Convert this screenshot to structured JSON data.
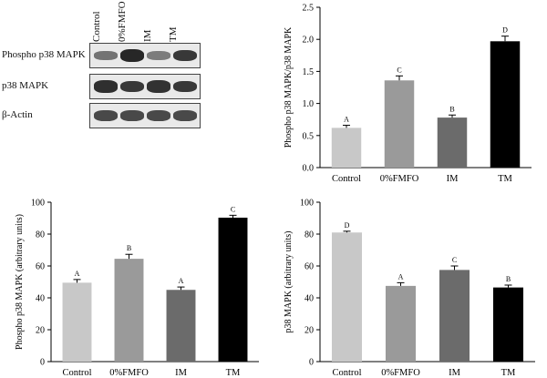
{
  "blot": {
    "lanes": [
      "Control",
      "0%FMFO",
      "IM",
      "TM"
    ],
    "rows": [
      {
        "label": "Phospho p38 MAPK",
        "intensity": [
          0.5,
          0.95,
          0.45,
          0.85
        ]
      },
      {
        "label": "p38 MAPK",
        "intensity": [
          0.9,
          0.85,
          0.88,
          0.85
        ]
      },
      {
        "label": "β-Actin",
        "intensity": [
          0.75,
          0.75,
          0.75,
          0.75
        ]
      }
    ]
  },
  "chart_data": [
    {
      "type": "bar",
      "categories": [
        "Control",
        "0%FMFO",
        "IM",
        "TM"
      ],
      "values": [
        0.62,
        1.36,
        0.78,
        1.97
      ],
      "errors": [
        0.04,
        0.07,
        0.04,
        0.08
      ],
      "letters": [
        "A",
        "C",
        "B",
        "D"
      ],
      "colors": [
        "#c8c8c8",
        "#9a9a9a",
        "#6b6b6b",
        "#000000"
      ],
      "ylabel": "Phospho p38 MAPK/p38 MAPK",
      "xlabel": "",
      "ylim": [
        0,
        2.5
      ],
      "yticks": [
        "0.0",
        "0.5",
        "1.0",
        "1.5",
        "2.0",
        "2.5"
      ]
    },
    {
      "type": "bar",
      "categories": [
        "Control",
        "0%FMFO",
        "IM",
        "TM"
      ],
      "values": [
        49.5,
        64.5,
        45.0,
        90.3
      ],
      "errors": [
        2.0,
        2.8,
        1.8,
        1.5
      ],
      "letters": [
        "A",
        "B",
        "A",
        "C"
      ],
      "colors": [
        "#c8c8c8",
        "#9a9a9a",
        "#6b6b6b",
        "#000000"
      ],
      "ylabel": "Phospho p38 MAPK (arbitrary units)",
      "xlabel": "",
      "ylim": [
        0,
        100
      ],
      "yticks": [
        "0",
        "20",
        "40",
        "60",
        "80",
        "100"
      ]
    },
    {
      "type": "bar",
      "categories": [
        "Control",
        "0%FMFO",
        "IM",
        "TM"
      ],
      "values": [
        81.0,
        47.5,
        57.5,
        46.5
      ],
      "errors": [
        0.8,
        2.0,
        2.5,
        1.5
      ],
      "letters": [
        "D",
        "A",
        "C",
        "B"
      ],
      "colors": [
        "#c8c8c8",
        "#9a9a9a",
        "#6b6b6b",
        "#000000"
      ],
      "ylabel": "p38 MAPK (arbitrary units)",
      "xlabel": "",
      "ylim": [
        0,
        100
      ],
      "yticks": [
        "0",
        "20",
        "40",
        "60",
        "80",
        "100"
      ]
    }
  ]
}
